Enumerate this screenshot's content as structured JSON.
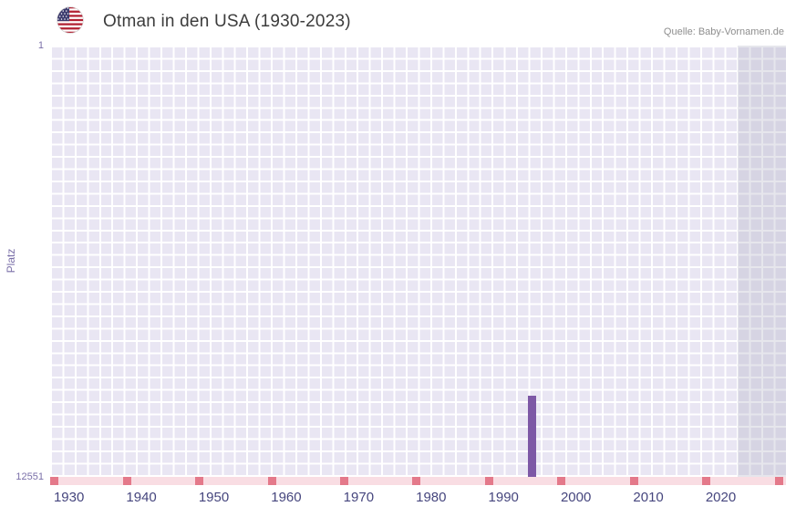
{
  "header": {
    "title": "Otman in den USA (1930-2023)",
    "source": "Quelle: Baby-Vornamen.de",
    "flag_icon": "us-flag"
  },
  "chart_data": {
    "type": "bar",
    "title": "Otman in den USA (1930-2023)",
    "xlabel": "",
    "ylabel": "Platz",
    "y_ticks": [
      "1",
      "12551"
    ],
    "y_range": [
      1,
      12551
    ],
    "y_inverted": true,
    "x_ticks": [
      1930,
      1940,
      1950,
      1960,
      1970,
      1980,
      1990,
      2000,
      2010,
      2020
    ],
    "x_range": [
      1927.4,
      2029
    ],
    "bars": [
      {
        "year": 1994,
        "rank": 10200
      }
    ],
    "bar_color": "#7d58a6",
    "unranked_marks": {
      "light_color": "#f9dde3",
      "dark_color": "#e4798a",
      "decade_marks": [
        1928,
        1938,
        1948,
        1958,
        1968,
        1978,
        1988,
        1998,
        2008,
        2018,
        2028
      ]
    },
    "shaded_region": {
      "from": 2022.3,
      "to": 2029,
      "color": "rgba(165,165,185,0.28)"
    },
    "grid": true,
    "plot_background": "#e9e6f3",
    "legend": "none"
  }
}
